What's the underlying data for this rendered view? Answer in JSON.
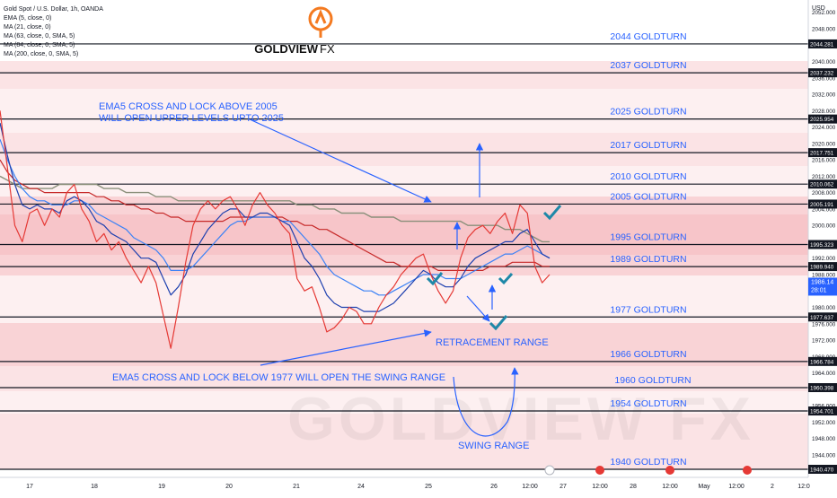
{
  "header": {
    "symbol": "Gold Spot / U.S. Dollar, 1h, OANDA",
    "indicators": [
      "EMA (5, close, 0)",
      "MA (21, close, 0)",
      "MA (63, close, 0, SMA, 5)",
      "MA (84, close, 0, SMA, 5)",
      "MA (200, close, 0, SMA, 5)"
    ]
  },
  "logo": {
    "name": "GOLDVIEW",
    "suffix": "FX",
    "watermark": "GOLDVIEW FX"
  },
  "chart_data": {
    "type": "line",
    "currency": "USD",
    "ylim": [
      1938.5,
      2055
    ],
    "y_ticks": [
      2052.0,
      2048.0,
      2044.0,
      2040.0,
      2036.0,
      2032.0,
      2028.0,
      2024.0,
      2020.0,
      2016.0,
      2012.0,
      2008.0,
      2004.0,
      2000.0,
      1996.0,
      1992.0,
      1988.0,
      1984.0,
      1980.0,
      1976.0,
      1972.0,
      1968.0,
      1964.0,
      1960.0,
      1956.0,
      1952.0,
      1948.0,
      1944.0
    ],
    "x_labels": [
      "17",
      "18",
      "19",
      "20",
      "21",
      "24",
      "25",
      "26",
      "12:00",
      "27",
      "12:00",
      "28",
      "12:00",
      "May",
      "12:00",
      "2",
      "12:0"
    ],
    "levels": [
      {
        "value": 2044.281,
        "label": "2044 GOLDTURN"
      },
      {
        "value": 2037.232,
        "label": "2037 GOLDTURN"
      },
      {
        "value": 2025.954,
        "label": "2025 GOLDTURN"
      },
      {
        "value": 2017.751,
        "label": "2017 GOLDTURN"
      },
      {
        "value": 2010.062,
        "label": "2010 GOLDTURN"
      },
      {
        "value": 2005.191,
        "label": "2005 GOLDTURN"
      },
      {
        "value": 1995.323,
        "label": "1995 GOLDTURN"
      },
      {
        "value": 1989.94,
        "label": "1989 GOLDTURN"
      },
      {
        "value": 1977.637,
        "label": "1977 GOLDTURN"
      },
      {
        "value": 1966.784,
        "label": "1966 GOLDTURN"
      },
      {
        "value": 1960.398,
        "label": "1960 GOLDTURN"
      },
      {
        "value": 1954.701,
        "label": "1954 GOLDTURN"
      },
      {
        "value": 1940.47,
        "label": "1940 GOLDTURN"
      }
    ],
    "current_price": 1986.14,
    "countdown": "28:01",
    "series": [
      {
        "values": [
          2028,
          2014,
          2000,
          1996,
          2003,
          2004,
          2000,
          2004,
          2002,
          2008,
          2010,
          2004,
          2001,
          1996,
          1998,
          1994,
          1996,
          1992,
          1989,
          1986,
          1990,
          1986,
          1978,
          1970,
          1980,
          1991,
          2000,
          2004,
          2006,
          2004,
          2006,
          2007,
          2004,
          2000,
          2005,
          2008,
          2005,
          2003,
          2000,
          1998,
          1987,
          1984,
          1985,
          1980,
          1974,
          1975,
          1977,
          1980,
          1979,
          1976,
          1976,
          1980,
          1983,
          1985,
          1988,
          1990,
          1992,
          1993,
          1988,
          1984,
          1981,
          1984,
          1992,
          1997,
          1999,
          2000,
          1998,
          2001,
          2003,
          1998,
          2005,
          2003,
          1990,
          1986,
          1988
        ]
      },
      {
        "values": [
          2025,
          2017,
          2010,
          2005,
          2004,
          2005,
          2004,
          2004,
          2003,
          2006,
          2007,
          2006,
          2004,
          2001,
          2000,
          1998,
          1997,
          1996,
          1994,
          1992,
          1992,
          1991,
          1987,
          1983,
          1985,
          1988,
          1993,
          1996,
          1999,
          2001,
          2003,
          2004,
          2004,
          2002,
          2002,
          2003,
          2003,
          2002,
          2001,
          2000,
          1996,
          1992,
          1990,
          1987,
          1983,
          1981,
          1980,
          1980,
          1980,
          1979,
          1979,
          1979,
          1980,
          1981,
          1983,
          1985,
          1987,
          1989,
          1988,
          1986,
          1985,
          1985,
          1987,
          1990,
          1992,
          1993,
          1994,
          1995,
          1996,
          1996,
          1998,
          1999,
          1996,
          1993,
          1992
        ]
      },
      {
        "values": [
          2021,
          2016,
          2012,
          2009,
          2007,
          2006,
          2006,
          2005,
          2005,
          2005,
          2006,
          2006,
          2005,
          2003,
          2002,
          2001,
          2000,
          1999,
          1997,
          1996,
          1995,
          1994,
          1992,
          1989,
          1989,
          1989,
          1990,
          1992,
          1994,
          1996,
          1998,
          2000,
          2001,
          2001,
          2002,
          2002,
          2002,
          2002,
          2001,
          2001,
          1999,
          1997,
          1995,
          1993,
          1990,
          1988,
          1987,
          1986,
          1985,
          1984,
          1984,
          1983,
          1983,
          1984,
          1985,
          1986,
          1987,
          1988,
          1988,
          1988,
          1987,
          1987,
          1987,
          1988,
          1989,
          1990,
          1991,
          1992,
          1993,
          1993,
          1994,
          1995,
          1994,
          1993,
          1992
        ]
      },
      {
        "values": [
          2016,
          2013,
          2011,
          2010,
          2009,
          2009,
          2008,
          2008,
          2008,
          2008,
          2008,
          2008,
          2008,
          2007,
          2007,
          2006,
          2006,
          2005,
          2005,
          2004,
          2004,
          2003,
          2003,
          2002,
          2002,
          2001,
          2001,
          2001,
          2001,
          2001,
          2001,
          2002,
          2002,
          2002,
          2002,
          2002,
          2002,
          2002,
          2002,
          2001,
          2001,
          2000,
          2000,
          1999,
          1999,
          1998,
          1997,
          1996,
          1995,
          1994,
          1993,
          1992,
          1991,
          1991,
          1990,
          1990,
          1990,
          1990,
          1990,
          1989,
          1989,
          1989,
          1989,
          1989,
          1989,
          1989,
          1990,
          1990,
          1990,
          1991,
          1991,
          1991,
          1991,
          1990,
          1990
        ]
      },
      {
        "values": [
          2012,
          2011,
          2010,
          2009,
          2009,
          2009,
          2009,
          2009,
          2010,
          2010,
          2010,
          2010,
          2010,
          2010,
          2009,
          2009,
          2009,
          2008,
          2008,
          2008,
          2008,
          2007,
          2007,
          2007,
          2006,
          2006,
          2006,
          2006,
          2006,
          2006,
          2006,
          2006,
          2006,
          2006,
          2006,
          2006,
          2006,
          2006,
          2006,
          2006,
          2005,
          2005,
          2005,
          2004,
          2004,
          2004,
          2003,
          2003,
          2003,
          2003,
          2002,
          2002,
          2002,
          2002,
          2001,
          2001,
          2001,
          2001,
          2001,
          2001,
          2001,
          2001,
          2001,
          2000,
          2000,
          2000,
          2000,
          2000,
          1999,
          1999,
          1999,
          1998,
          1997,
          1996,
          1996
        ]
      }
    ]
  },
  "annotations": {
    "ema_up": [
      "EMA5 CROSS AND LOCK ABOVE 2005",
      "WILL OPEN UPPER LEVELS UPTO 2025"
    ],
    "ema_down": "EMA5 CROSS AND LOCK BELOW 1977 WILL OPEN THE SWING RANGE",
    "retracement": "RETRACEMENT RANGE",
    "swing": "SWING RANGE"
  },
  "colors": {
    "accent_blue": "#2962ff",
    "band_pink": "#f8c6c9",
    "ema5": "#e53935",
    "ma21": "#1e40af",
    "ma63": "#3b82f6",
    "ma84": "#c62828",
    "ma200": "#8a8f7a",
    "check": "#1e88a8",
    "logo_orange": "#f47a20"
  }
}
